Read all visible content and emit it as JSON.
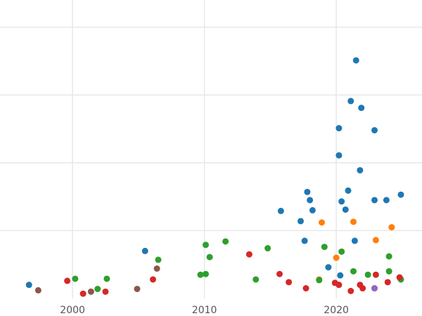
{
  "chart_data": {
    "type": "scatter",
    "title": "",
    "xlabel": "",
    "ylabel": "",
    "xlim": [
      1994.5,
      2026.5
    ],
    "ylim": [
      0,
      44
    ],
    "x_ticks": [
      2000,
      2010,
      2020
    ],
    "x_tick_labels": [
      "2000",
      "2010",
      "2020"
    ],
    "y_gridlines": [
      10,
      20,
      30,
      40
    ],
    "grid": true,
    "legend": "none",
    "series": [
      {
        "color": "#1f77b4",
        "points": [
          {
            "x": 1996.7,
            "y": 2.0
          },
          {
            "x": 2005.5,
            "y": 7.0
          },
          {
            "x": 2015.8,
            "y": 12.9
          },
          {
            "x": 2017.3,
            "y": 11.4
          },
          {
            "x": 2017.6,
            "y": 8.5
          },
          {
            "x": 2017.8,
            "y": 15.7
          },
          {
            "x": 2018.0,
            "y": 14.5
          },
          {
            "x": 2018.2,
            "y": 13.0
          },
          {
            "x": 2019.4,
            "y": 4.6
          },
          {
            "x": 2020.2,
            "y": 25.1
          },
          {
            "x": 2020.2,
            "y": 21.1
          },
          {
            "x": 2020.3,
            "y": 3.4
          },
          {
            "x": 2020.4,
            "y": 14.3
          },
          {
            "x": 2020.7,
            "y": 13.1
          },
          {
            "x": 2020.9,
            "y": 15.9
          },
          {
            "x": 2021.1,
            "y": 29.1
          },
          {
            "x": 2021.4,
            "y": 8.5
          },
          {
            "x": 2021.5,
            "y": 35.1
          },
          {
            "x": 2021.8,
            "y": 18.9
          },
          {
            "x": 2021.9,
            "y": 28.1
          },
          {
            "x": 2022.9,
            "y": 24.8
          },
          {
            "x": 2022.9,
            "y": 14.5
          },
          {
            "x": 2023.8,
            "y": 14.5
          },
          {
            "x": 2024.9,
            "y": 15.3
          }
        ]
      },
      {
        "color": "#ff7f0e",
        "points": [
          {
            "x": 2018.7,
            "y": 2.8
          },
          {
            "x": 2018.9,
            "y": 11.2
          },
          {
            "x": 2020.0,
            "y": 6.0
          },
          {
            "x": 2021.3,
            "y": 11.3
          },
          {
            "x": 2023.0,
            "y": 8.6
          },
          {
            "x": 2024.2,
            "y": 10.5
          }
        ]
      },
      {
        "color": "#2ca02c",
        "points": [
          {
            "x": 2000.2,
            "y": 2.9
          },
          {
            "x": 2001.9,
            "y": 1.4
          },
          {
            "x": 2002.6,
            "y": 2.9
          },
          {
            "x": 2006.5,
            "y": 5.7
          },
          {
            "x": 2009.7,
            "y": 3.5
          },
          {
            "x": 2010.1,
            "y": 3.6
          },
          {
            "x": 2010.1,
            "y": 7.9
          },
          {
            "x": 2010.4,
            "y": 6.1
          },
          {
            "x": 2011.6,
            "y": 8.4
          },
          {
            "x": 2013.9,
            "y": 2.8
          },
          {
            "x": 2014.8,
            "y": 7.4
          },
          {
            "x": 2018.7,
            "y": 2.7
          },
          {
            "x": 2019.1,
            "y": 7.6
          },
          {
            "x": 2020.4,
            "y": 6.9
          },
          {
            "x": 2021.3,
            "y": 4.0
          },
          {
            "x": 2022.4,
            "y": 3.5
          },
          {
            "x": 2024.0,
            "y": 6.2
          },
          {
            "x": 2024.0,
            "y": 4.0
          },
          {
            "x": 2024.9,
            "y": 2.8
          }
        ]
      },
      {
        "color": "#d62728",
        "points": [
          {
            "x": 1999.6,
            "y": 2.6
          },
          {
            "x": 2000.8,
            "y": 0.7
          },
          {
            "x": 2002.5,
            "y": 1.0
          },
          {
            "x": 2006.1,
            "y": 2.8
          },
          {
            "x": 2013.4,
            "y": 6.5
          },
          {
            "x": 2015.7,
            "y": 3.6
          },
          {
            "x": 2016.4,
            "y": 2.4
          },
          {
            "x": 2017.7,
            "y": 1.5
          },
          {
            "x": 2019.9,
            "y": 2.3
          },
          {
            "x": 2020.2,
            "y": 2.0
          },
          {
            "x": 2021.1,
            "y": 1.1
          },
          {
            "x": 2021.8,
            "y": 2.0
          },
          {
            "x": 2022.0,
            "y": 1.5
          },
          {
            "x": 2023.0,
            "y": 3.5
          },
          {
            "x": 2023.9,
            "y": 2.4
          },
          {
            "x": 2024.8,
            "y": 3.1
          }
        ]
      },
      {
        "color": "#8c564b",
        "points": [
          {
            "x": 1997.4,
            "y": 1.2
          },
          {
            "x": 2001.4,
            "y": 1.0
          },
          {
            "x": 2004.9,
            "y": 1.4
          },
          {
            "x": 2006.4,
            "y": 4.4
          }
        ]
      },
      {
        "color": "#9467bd",
        "points": [
          {
            "x": 2022.9,
            "y": 1.5
          },
          {
            "x": 2022.9,
            "y": 1.5
          }
        ]
      }
    ]
  }
}
